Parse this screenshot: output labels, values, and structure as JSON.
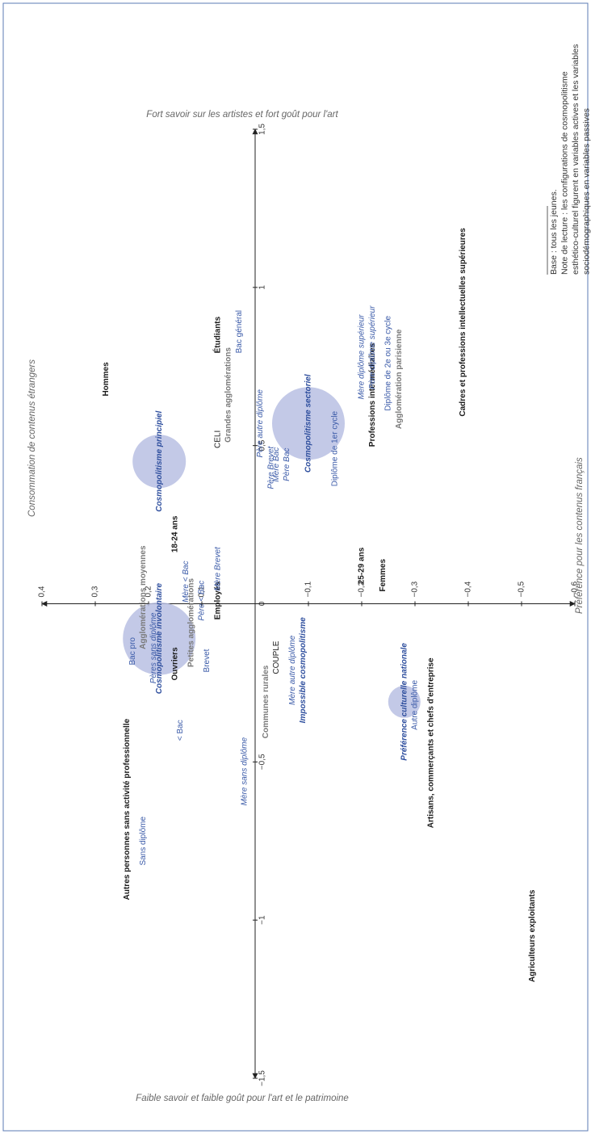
{
  "chart_data": {
    "type": "scatter",
    "xlabel_high": "Fort savoir sur les artistes et fort goût pour l'art",
    "xlabel_low": "Faible savoir et faible goût pour l'art et le patrimoine",
    "ylabel_high": "Consommation de contenus étrangers",
    "ylabel_low": "Préférence pour les contenus français",
    "note": [
      "Base : tous les jeunes.",
      "Note de lecture : les configurations de cosmopolitisme",
      "esthético-culturel figurent en variables actives et les variables",
      "sociodémographiques en variables passives"
    ],
    "xlim": [
      -1.5,
      1.5
    ],
    "xticks": [
      {
        "value": -1.5,
        "label": "−1,5"
      },
      {
        "value": -1,
        "label": "−1"
      },
      {
        "value": -0.5,
        "label": "−0,5"
      },
      0,
      {
        "value": 0.5,
        "label": "0,5"
      },
      1,
      {
        "value": 1.5,
        "label": "1,5"
      }
    ],
    "ylim": [
      -0.6,
      0.4
    ],
    "yticks": [
      {
        "value": 0.4,
        "label": "0,4"
      },
      {
        "value": 0.3,
        "label": "0,3"
      },
      {
        "value": 0.2,
        "label": "0,2"
      },
      {
        "value": 0.1,
        "label": "0,1"
      },
      {
        "value": -0.1,
        "label": "−0,1"
      },
      {
        "value": -0.2,
        "label": "−0,2"
      },
      {
        "value": -0.3,
        "label": "−0,3"
      },
      {
        "value": -0.4,
        "label": "−0,4"
      },
      {
        "value": -0.5,
        "label": "−0,5"
      },
      {
        "value": -0.6,
        "label": "−0,6"
      }
    ],
    "bubble_color": "#b8bfe3",
    "groups": [
      {
        "color": "#1a1a1a",
        "bold": true,
        "italic": false,
        "labels": [
          "Hommes",
          "18-24 ans",
          "Étudiants",
          "Employés",
          "Ouvriers",
          "Autres personnes sans activité professionnelle",
          "Agriculteurs exploitants",
          "Artisans, commerçants et chefs d'entreprise",
          "Femmes",
          "25-29 ans",
          "Professions intermédiaires",
          "Cadres et professions intellectuelles supérieures"
        ],
        "x": [
          0.71,
          0.22,
          0.85,
          0.01,
          -0.19,
          -0.65,
          -1.05,
          -0.44,
          0.09,
          0.12,
          0.66,
          0.89
        ],
        "y": [
          0.28,
          0.15,
          0.07,
          0.07,
          0.15,
          0.24,
          -0.52,
          -0.33,
          -0.24,
          -0.2,
          -0.22,
          -0.39
        ]
      },
      {
        "color": "#1a1a1a",
        "bold": false,
        "italic": false,
        "labels": [
          "CELI",
          "COUPLE"
        ],
        "x": [
          0.52,
          -0.17
        ],
        "y": [
          0.07,
          -0.04
        ]
      },
      {
        "color": "#7a7a7a",
        "bold": true,
        "italic": false,
        "labels": [
          "Grandes agglomérations",
          "Agglomérations moyennes",
          "Petites agglomérations",
          "Communes rurales",
          "Agglomération parisienne"
        ],
        "x": [
          0.66,
          0.02,
          -0.06,
          -0.31,
          0.71
        ],
        "y": [
          0.05,
          0.21,
          0.12,
          -0.02,
          -0.27
        ]
      },
      {
        "color": "#3a5aa8",
        "bold": false,
        "italic": false,
        "labels": [
          "Bac pro",
          "Sans diplôme",
          "< Bac",
          "Brevet",
          "Bac général",
          "Diplôme de 1er cycle",
          "Diplôme de 2e ou 3e cycle",
          "Autre diplôme"
        ],
        "x": [
          -0.15,
          -0.75,
          -0.4,
          -0.18,
          0.86,
          0.49,
          0.76,
          -0.32
        ],
        "y": [
          0.23,
          0.21,
          0.14,
          0.09,
          0.03,
          -0.15,
          -0.25,
          -0.3
        ]
      },
      {
        "color": "#3a5aa8",
        "bold": false,
        "italic": true,
        "labels": [
          "Pères sans diplôme",
          "Mère < Bac",
          "Père < Bac",
          "Mère Brevet",
          "Mère sans diplôme",
          "Mère autre diplôme",
          "Père autre diplôme",
          "Père Brevet",
          "Mère Bac",
          "Père Bac",
          "Mère diplôme supérieur",
          "Père diplôme supérieur"
        ],
        "x": [
          -0.14,
          0.07,
          0.01,
          0.11,
          -0.53,
          -0.21,
          0.57,
          0.43,
          0.44,
          0.44,
          0.78,
          0.81
        ],
        "y": [
          0.19,
          0.13,
          0.1,
          0.07,
          0.02,
          -0.07,
          -0.01,
          -0.03,
          -0.04,
          -0.06,
          -0.2,
          -0.22
        ]
      },
      {
        "color": "#2f4f9e",
        "bold": true,
        "italic": true,
        "labels": [
          "Cosmopolitisme principiel",
          "Cosmopolitisme sectoriel",
          "Cosmopolitisme involontaire",
          "Impossible cosmopolitisme",
          "Préférence culturelle nationale"
        ],
        "x": [
          0.45,
          0.57,
          -0.11,
          -0.21,
          -0.31
        ],
        "y": [
          0.18,
          -0.1,
          0.18,
          -0.09,
          -0.28
        ],
        "size": [
          33,
          45,
          45,
          null,
          20
        ]
      }
    ]
  }
}
